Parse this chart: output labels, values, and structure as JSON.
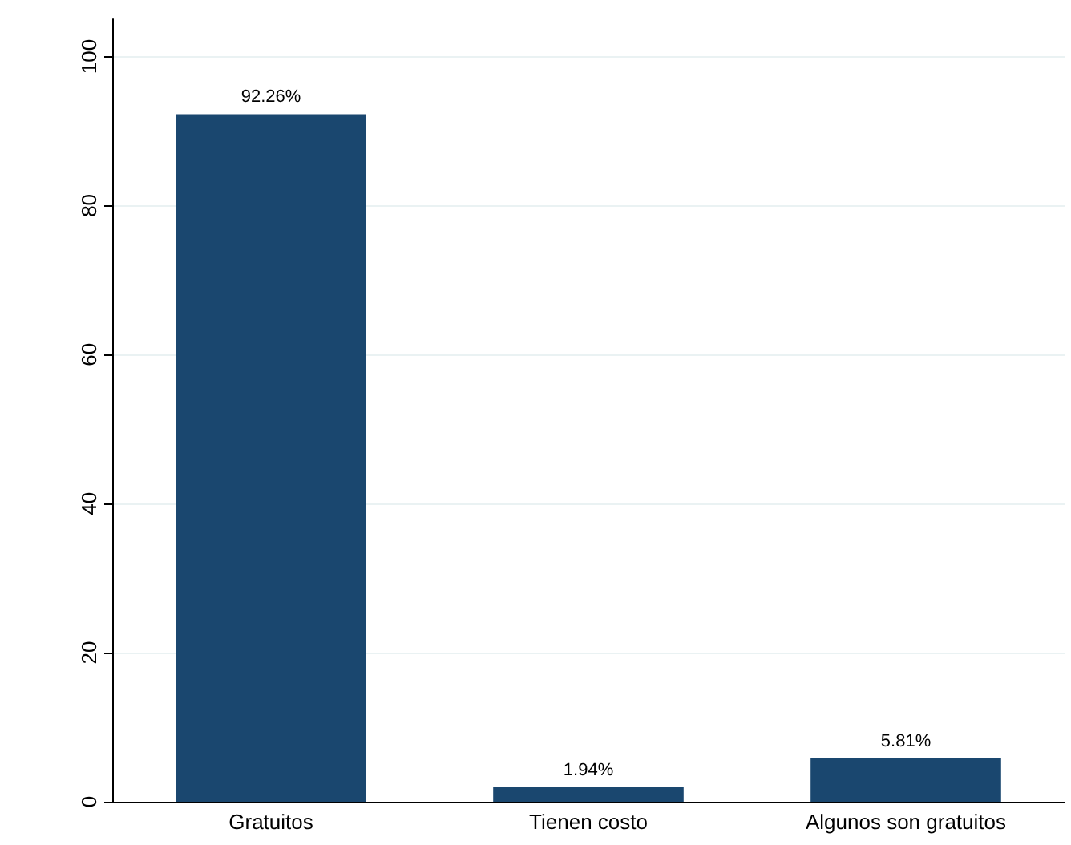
{
  "chart_data": {
    "type": "bar",
    "categories": [
      "Gratuitos",
      "Tienen costo",
      "Algunos son gratuitos"
    ],
    "values": [
      92.26,
      1.94,
      5.81
    ],
    "color": "#1a476f",
    "value_labels": [
      "92.26%",
      "1.94%",
      "5.81%"
    ],
    "ylim": [
      0,
      105
    ],
    "yticks": [
      0,
      20,
      40,
      60,
      80,
      100
    ],
    "grid": "y"
  }
}
